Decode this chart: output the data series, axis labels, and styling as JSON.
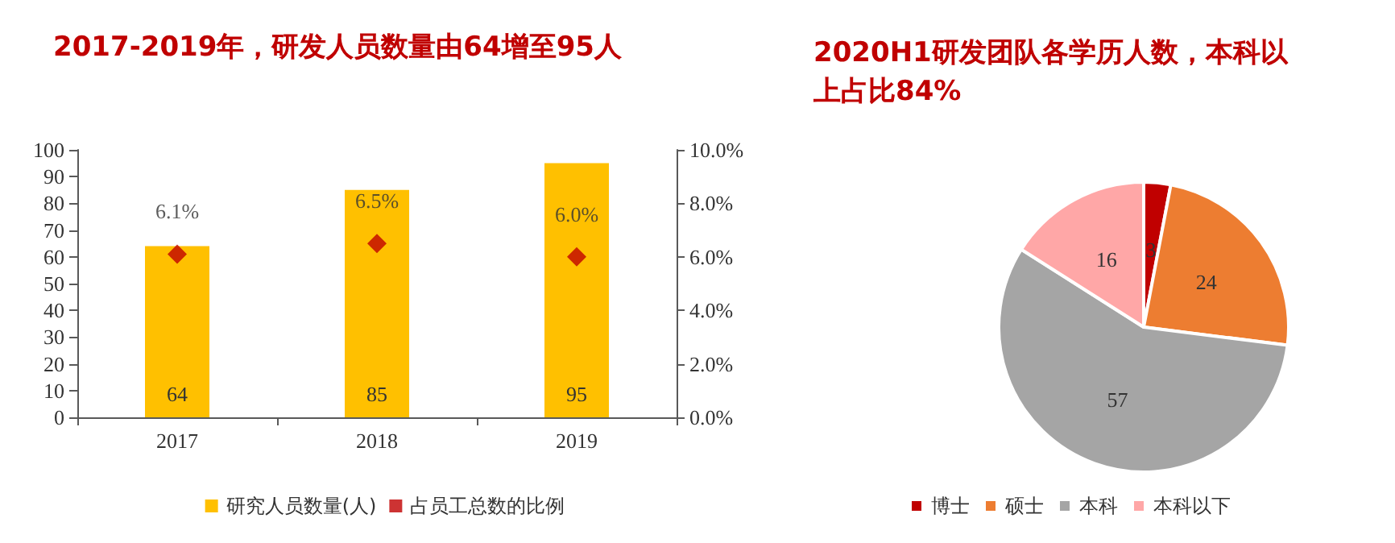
{
  "chart_data": [
    {
      "type": "bar",
      "title": "2017-2019年，研发人员数量由64增至95人",
      "categories": [
        "2017",
        "2018",
        "2019"
      ],
      "series": [
        {
          "name": "研究人员数量(人)",
          "type": "bar",
          "color": "#ffc000",
          "values": [
            64,
            85,
            95
          ],
          "value_labels": [
            "64",
            "85",
            "95"
          ]
        },
        {
          "name": "占员工总数的比例",
          "type": "scatter",
          "axis": "y2",
          "color": "#c00000",
          "values": [
            6.1,
            6.5,
            6.0
          ],
          "value_labels": [
            "6.1%",
            "6.5%",
            "6.0%"
          ]
        }
      ],
      "ylim": [
        0,
        100
      ],
      "yticks": [
        0,
        10,
        20,
        30,
        40,
        50,
        60,
        70,
        80,
        90,
        100
      ],
      "y2lim": [
        0,
        10
      ],
      "y2ticks": [
        {
          "value": 0,
          "label": "0.0%"
        },
        {
          "value": 2,
          "label": "2.0%"
        },
        {
          "value": 4,
          "label": "4.0%"
        },
        {
          "value": 6,
          "label": "6.0%"
        },
        {
          "value": 8,
          "label": "8.0%"
        },
        {
          "value": 10,
          "label": "10.0%"
        }
      ],
      "marker": "diamond",
      "grid": false,
      "legend": "bottom"
    },
    {
      "type": "pie",
      "title": "2020H1研发团队各学历人数，本科以上占比84%",
      "categories": [
        "博士",
        "硕士",
        "本科",
        "本科以下"
      ],
      "values": [
        3,
        24,
        57,
        16
      ],
      "colors": [
        "#c00000",
        "#ed7d31",
        "#a5a5a5",
        "#ffa7a7"
      ],
      "data_labels": true,
      "legend": "bottom"
    }
  ]
}
